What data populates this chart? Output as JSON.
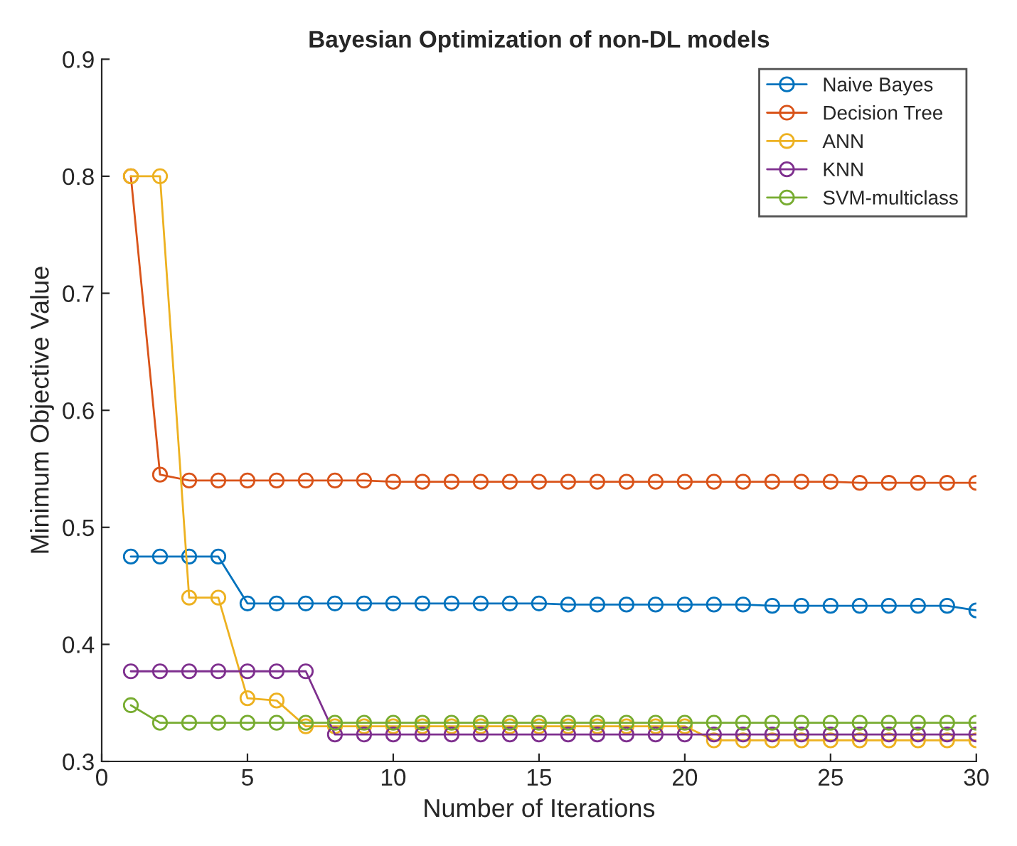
{
  "chart_data": {
    "type": "line",
    "title": "Bayesian Optimization of non-DL models",
    "xlabel": "Number of Iterations",
    "ylabel": "Minimum Objective Value",
    "x": [
      1,
      2,
      3,
      4,
      5,
      6,
      7,
      8,
      9,
      10,
      11,
      12,
      13,
      14,
      15,
      16,
      17,
      18,
      19,
      20,
      21,
      22,
      23,
      24,
      25,
      26,
      27,
      28,
      29,
      30
    ],
    "series": [
      {
        "name": "Naive Bayes",
        "color": "#0072bd",
        "values": [
          0.475,
          0.475,
          0.475,
          0.475,
          0.435,
          0.435,
          0.435,
          0.435,
          0.435,
          0.435,
          0.435,
          0.435,
          0.435,
          0.435,
          0.435,
          0.434,
          0.434,
          0.434,
          0.434,
          0.434,
          0.434,
          0.434,
          0.433,
          0.433,
          0.433,
          0.433,
          0.433,
          0.433,
          0.433,
          0.429
        ]
      },
      {
        "name": "Decision Tree",
        "color": "#d95319",
        "values": [
          0.8,
          0.545,
          0.54,
          0.54,
          0.54,
          0.54,
          0.54,
          0.54,
          0.54,
          0.539,
          0.539,
          0.539,
          0.539,
          0.539,
          0.539,
          0.539,
          0.539,
          0.539,
          0.539,
          0.539,
          0.539,
          0.539,
          0.539,
          0.539,
          0.539,
          0.538,
          0.538,
          0.538,
          0.538,
          0.538
        ]
      },
      {
        "name": "ANN",
        "color": "#edb120",
        "values": [
          0.8,
          0.8,
          0.44,
          0.44,
          0.354,
          0.352,
          0.33,
          0.33,
          0.33,
          0.33,
          0.33,
          0.33,
          0.33,
          0.33,
          0.33,
          0.33,
          0.33,
          0.33,
          0.33,
          0.33,
          0.318,
          0.318,
          0.318,
          0.318,
          0.318,
          0.318,
          0.318,
          0.318,
          0.318,
          0.318
        ]
      },
      {
        "name": "KNN",
        "color": "#7e2f8e",
        "values": [
          0.377,
          0.377,
          0.377,
          0.377,
          0.377,
          0.377,
          0.377,
          0.323,
          0.323,
          0.323,
          0.323,
          0.323,
          0.323,
          0.323,
          0.323,
          0.323,
          0.323,
          0.323,
          0.323,
          0.323,
          0.323,
          0.323,
          0.323,
          0.323,
          0.323,
          0.323,
          0.323,
          0.323,
          0.323,
          0.323
        ]
      },
      {
        "name": "SVM-multiclass",
        "color": "#77ac30",
        "values": [
          0.348,
          0.333,
          0.333,
          0.333,
          0.333,
          0.333,
          0.333,
          0.333,
          0.333,
          0.333,
          0.333,
          0.333,
          0.333,
          0.333,
          0.333,
          0.333,
          0.333,
          0.333,
          0.333,
          0.333,
          0.333,
          0.333,
          0.333,
          0.333,
          0.333,
          0.333,
          0.333,
          0.333,
          0.333,
          0.333
        ]
      }
    ],
    "xlim": [
      0,
      30
    ],
    "xticks": [
      0,
      5,
      10,
      15,
      20,
      25,
      30
    ],
    "ylim": [
      0.3,
      0.9
    ],
    "yticks": [
      0.3,
      0.4,
      0.5,
      0.6,
      0.7,
      0.8,
      0.9
    ],
    "grid": false,
    "legend": "top right",
    "marker": "circle",
    "line_style": "solid"
  }
}
